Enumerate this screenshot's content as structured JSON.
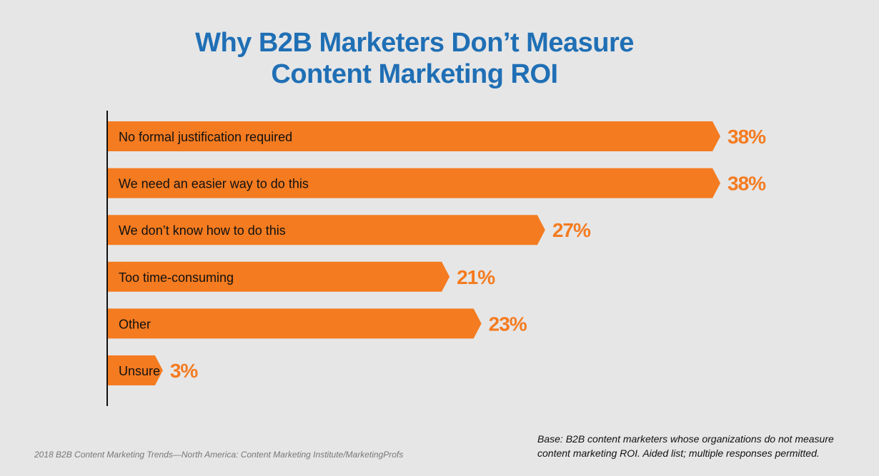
{
  "chart_data": {
    "type": "bar",
    "orientation": "horizontal",
    "title": "Why B2B Marketers Don’t Measure Content Marketing ROI",
    "categories": [
      "No formal justification required",
      "We need an easier way to do this",
      "We don’t know how to do this",
      "Too time-consuming",
      "Other",
      "Unsure"
    ],
    "values": [
      38,
      38,
      27,
      21,
      23,
      3
    ],
    "value_labels": [
      "38%",
      "38%",
      "27%",
      "21%",
      "23%",
      "3%"
    ],
    "xlim": [
      0,
      38
    ],
    "grid": false,
    "bar_color": "#f47b20",
    "label_color": "#f47b20",
    "title_color": "#1f6fb5"
  },
  "footer": {
    "source": "2018 B2B Content Marketing Trends—North America: Content Marketing Institute/MarketingProfs",
    "note_line1": "Base: B2B content marketers whose organizations do not measure",
    "note_line2": "content marketing ROI. Aided list; multiple responses permitted."
  }
}
